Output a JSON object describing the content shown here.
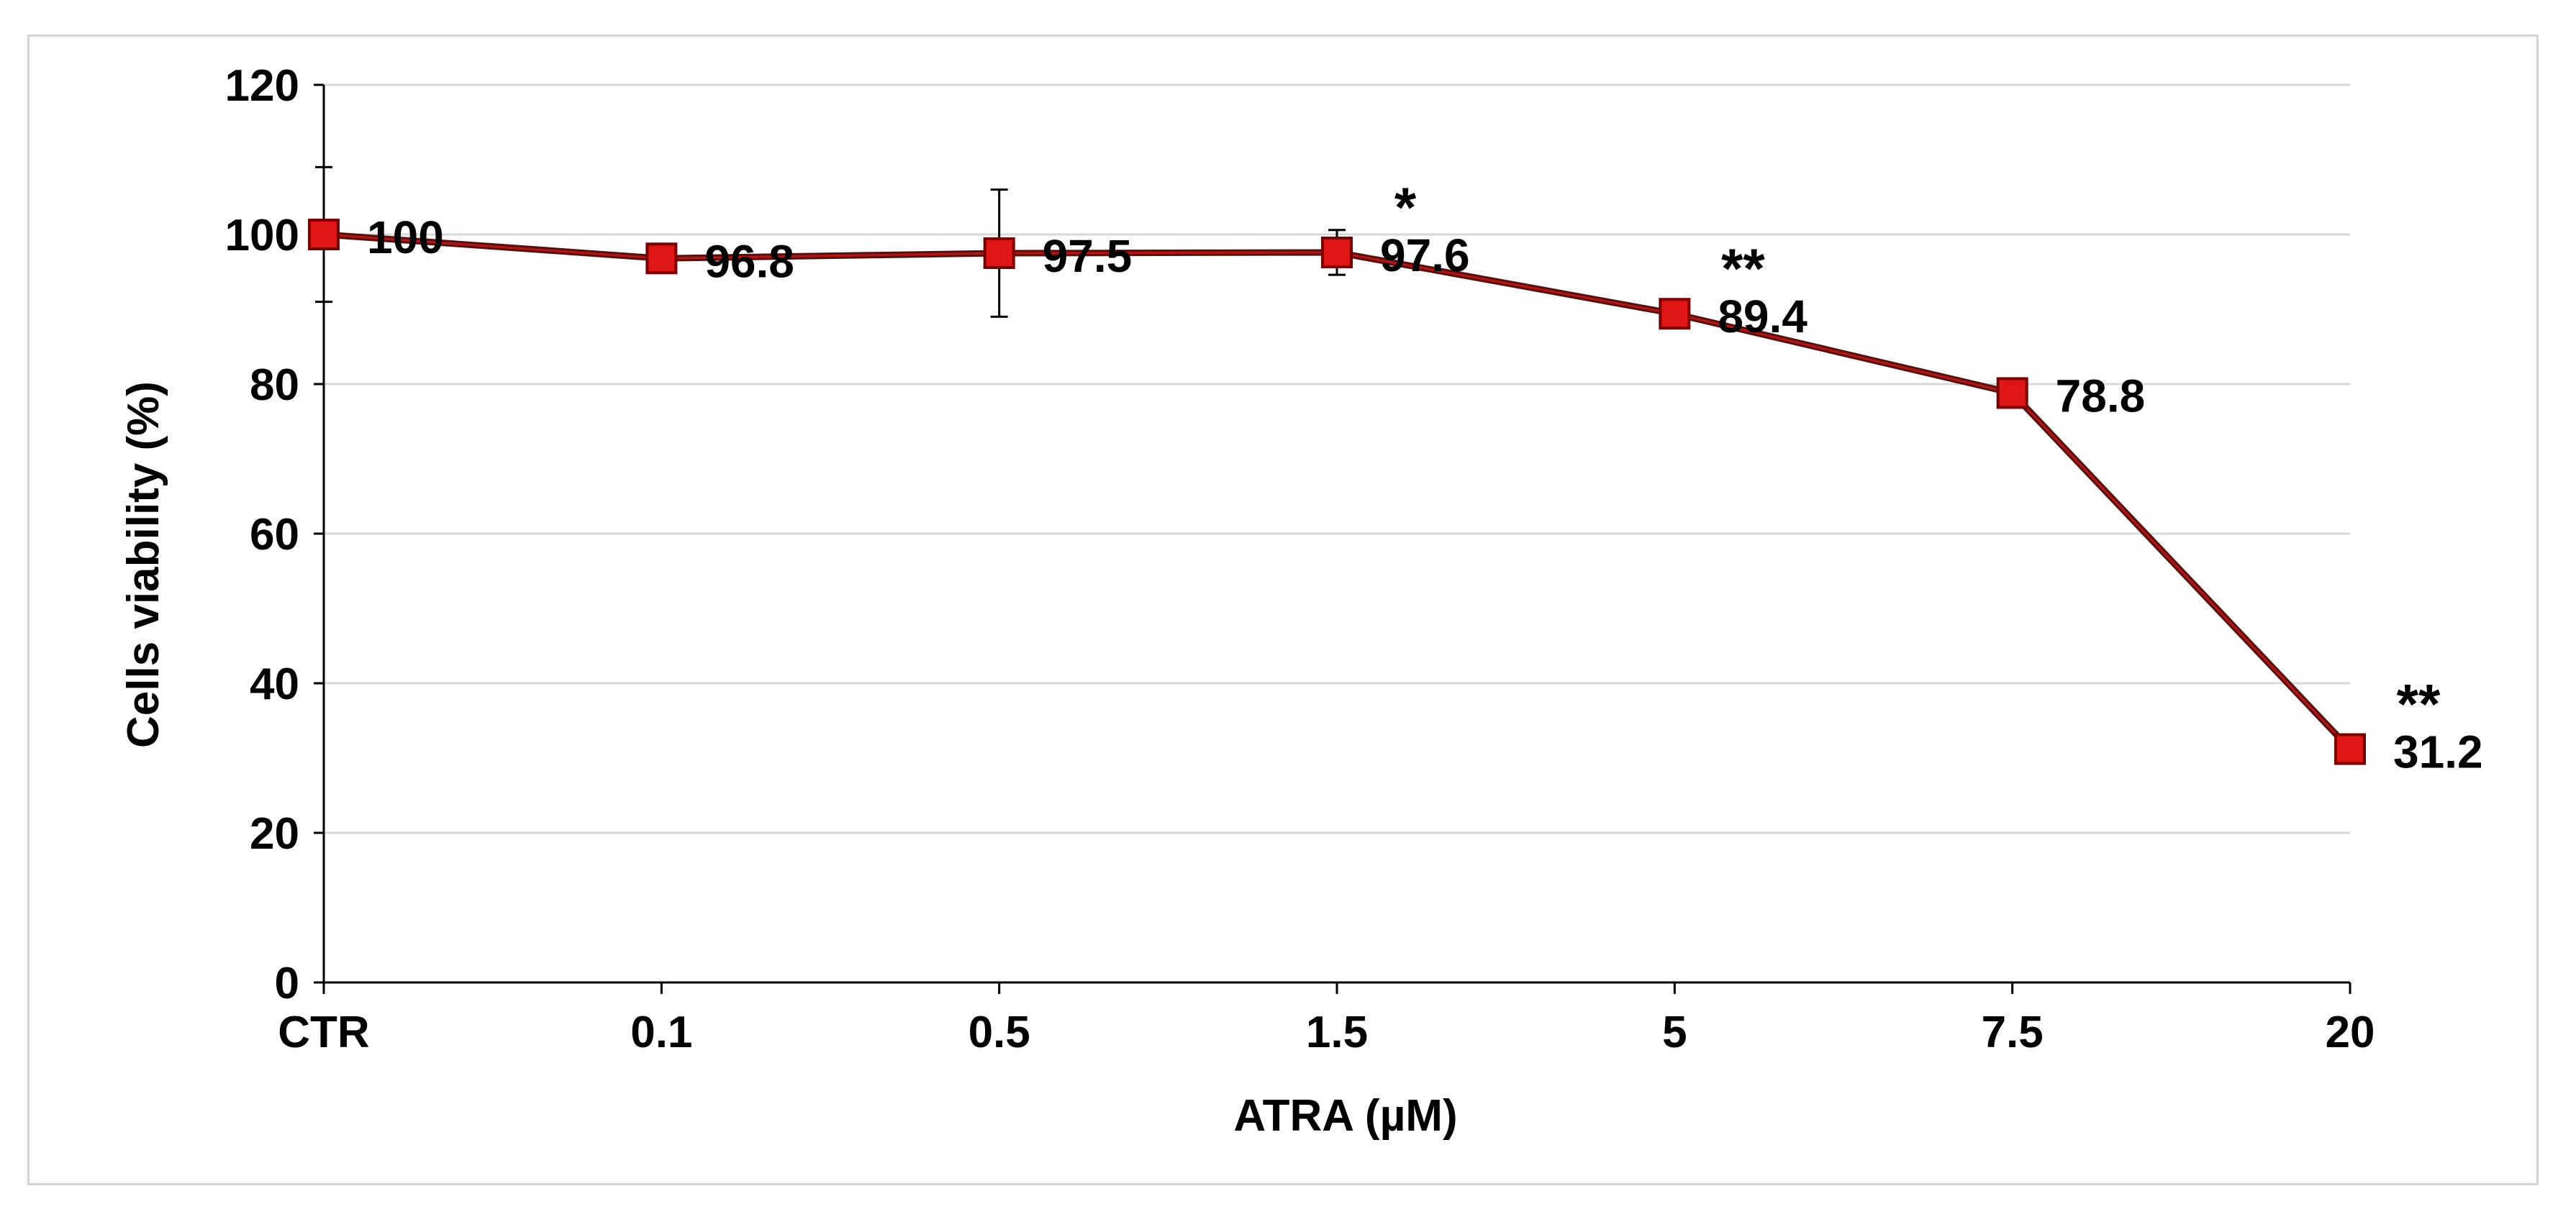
{
  "chart_data": {
    "type": "line",
    "title": "",
    "xlabel": "ATRA (µM)",
    "ylabel": "Cells viability (%)",
    "ylim": [
      0,
      120
    ],
    "yticks": [
      0,
      20,
      40,
      60,
      80,
      100,
      120
    ],
    "categories": [
      "CTR",
      "0.1",
      "0.5",
      "1.5",
      "5",
      "7.5",
      "20"
    ],
    "series": [
      {
        "name": "Cells viability",
        "values": [
          100,
          96.8,
          97.5,
          97.6,
          89.4,
          78.8,
          31.2
        ],
        "data_labels": [
          "100",
          "96.8",
          "97.5",
          "97.6",
          "89.4",
          "78.8",
          "31.2"
        ],
        "error": [
          9,
          1.5,
          8.5,
          3,
          1,
          1,
          1
        ],
        "significance": [
          "",
          "",
          "",
          "*",
          "**",
          "",
          "**"
        ]
      }
    ],
    "grid": true,
    "legend": "none",
    "colors": {
      "line": "#5a0f0f",
      "marker_fill": "#e01515",
      "marker_stroke": "#7a0000",
      "grid": "#d9d9d9",
      "axis": "#000000"
    }
  }
}
